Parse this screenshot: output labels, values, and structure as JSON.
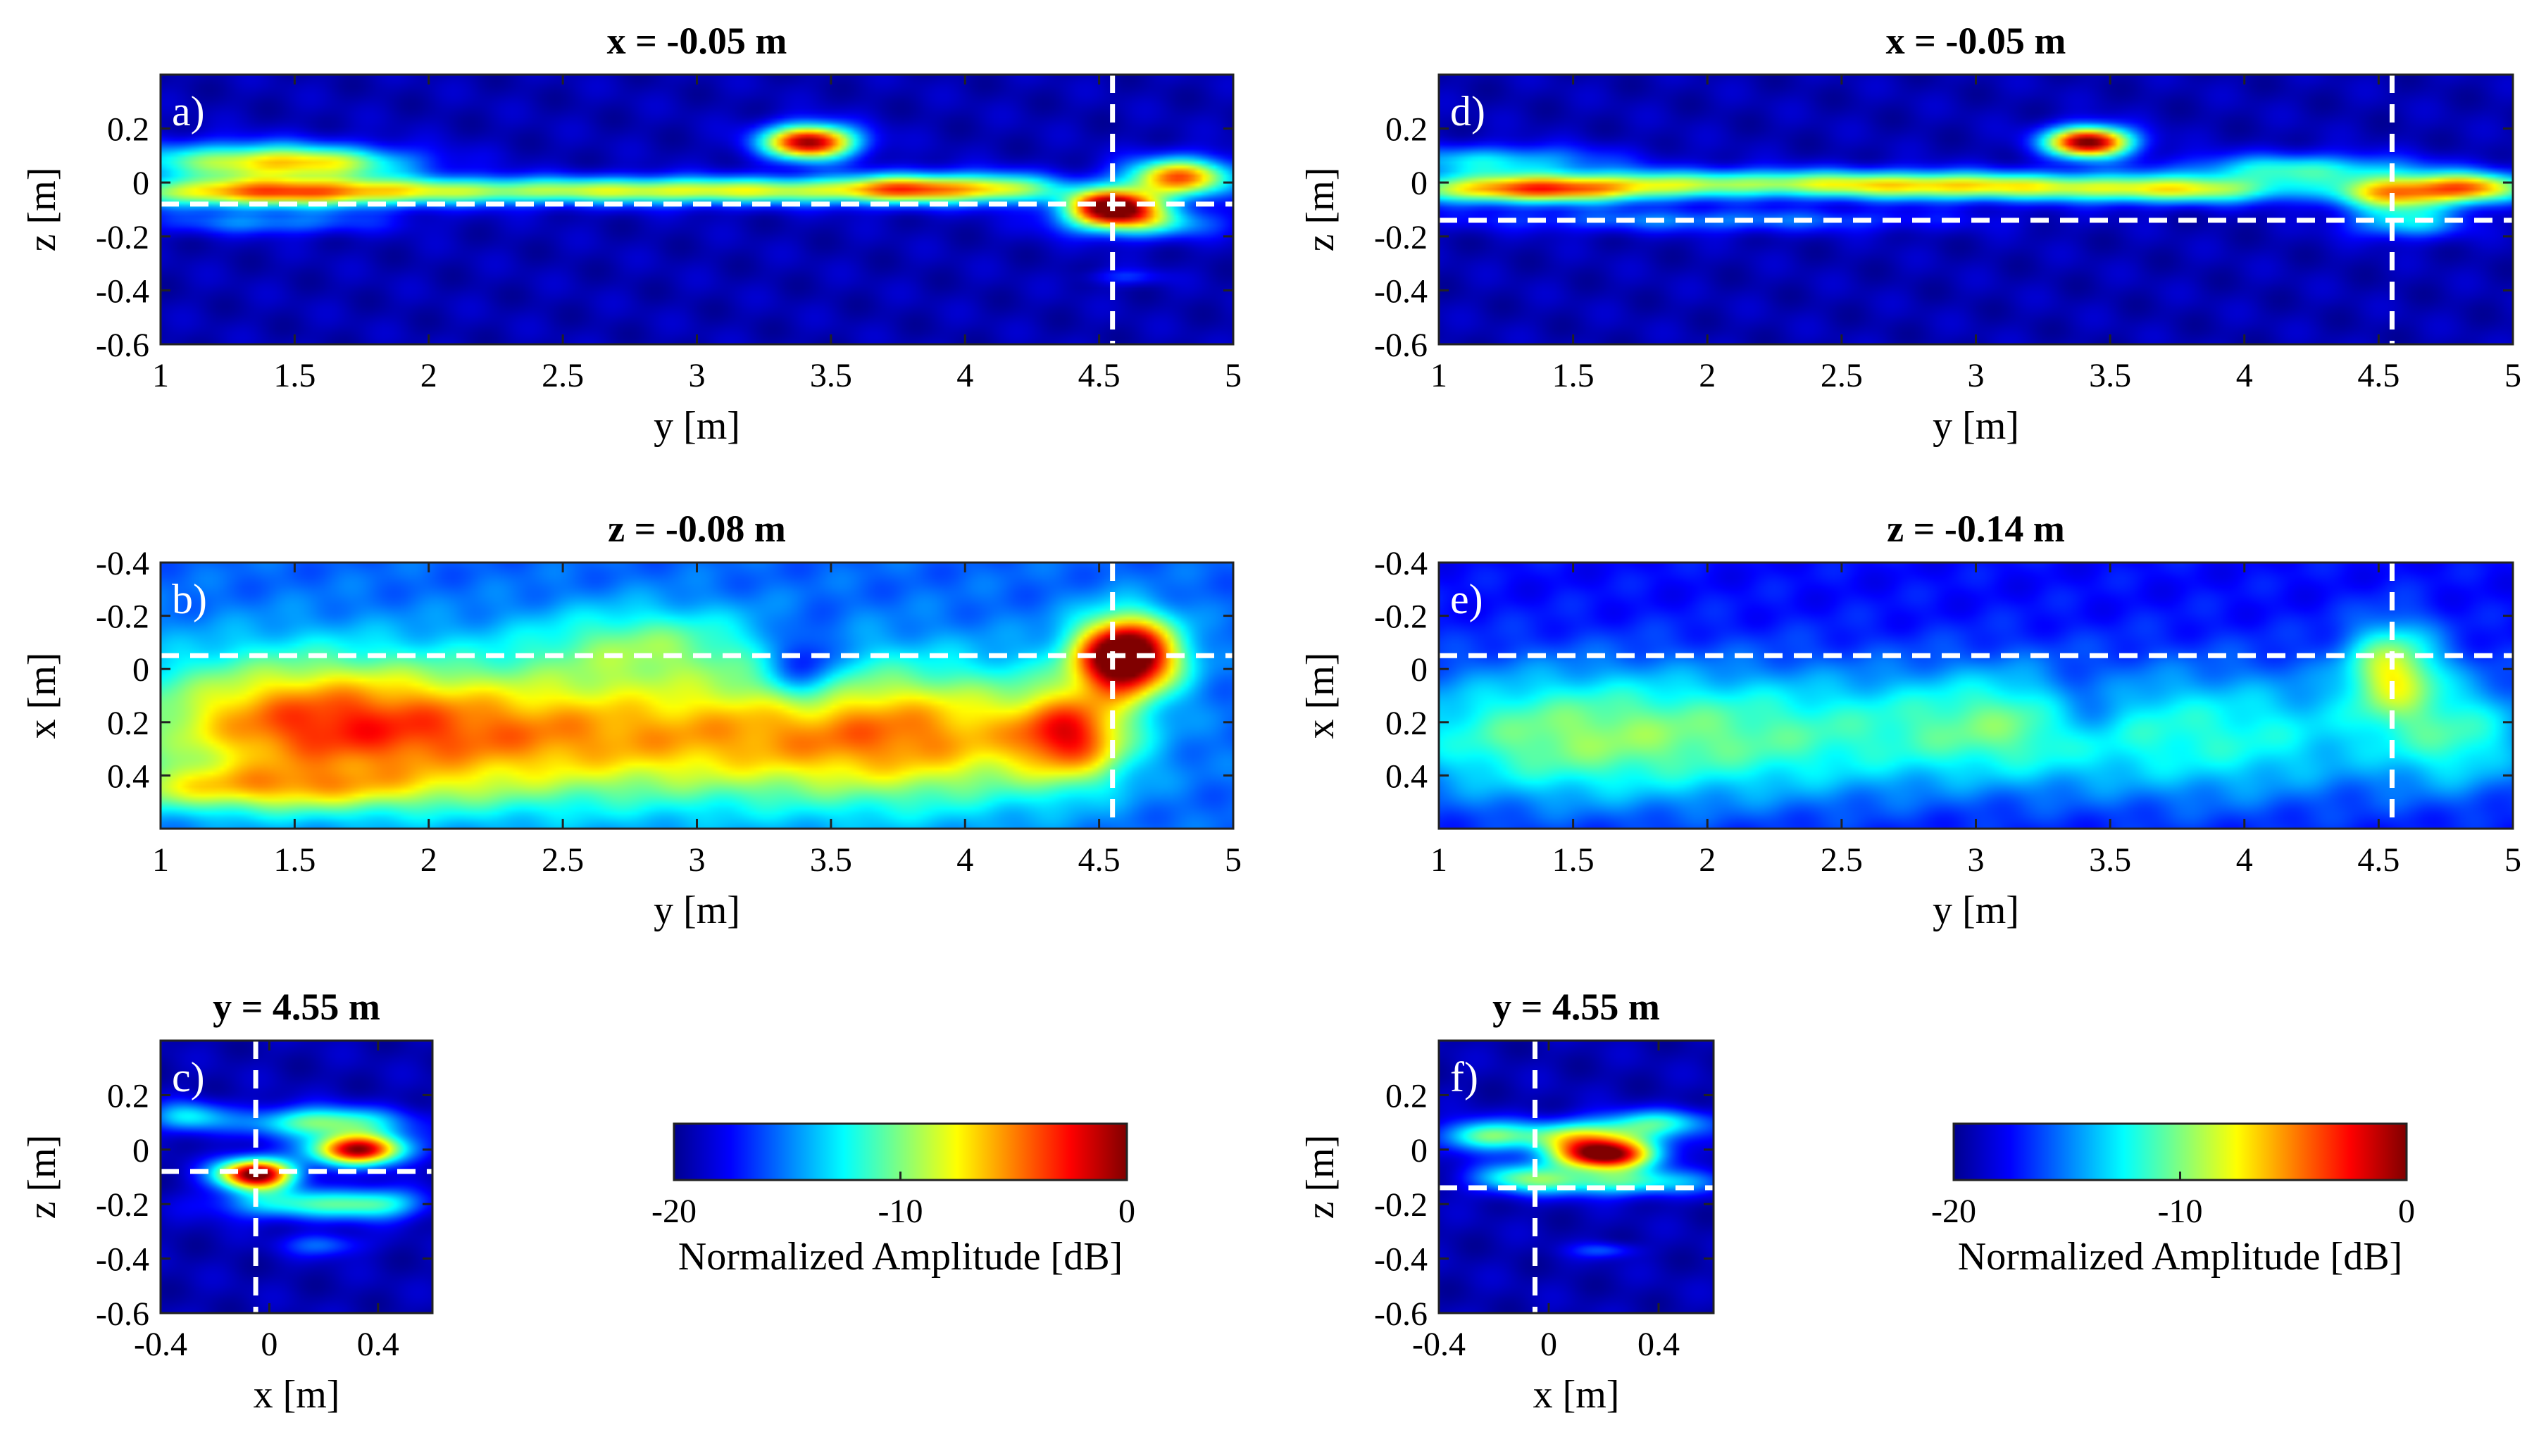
{
  "chart_data": [
    {
      "id": "a",
      "type": "heatmap",
      "panel_label": "a)",
      "title": "x = -0.05 m",
      "xlabel": "y [m]",
      "ylabel": "z [m]",
      "xlim": [
        1,
        5
      ],
      "ylim": [
        -0.6,
        0.4
      ],
      "y_reversed": false,
      "xticks": [
        1,
        1.5,
        2,
        2.5,
        3,
        3.5,
        4,
        4.5,
        5
      ],
      "xtick_labels": [
        "1",
        "1.5",
        "2",
        "2.5",
        "3",
        "3.5",
        "4",
        "4.5",
        "5"
      ],
      "yticks": [
        0.2,
        0,
        -0.2,
        -0.4,
        -0.6
      ],
      "ytick_labels": [
        "0.2",
        "0",
        "-0.2",
        "-0.4",
        "-0.6"
      ],
      "crosshair": {
        "v": 4.55,
        "h": -0.08
      },
      "background_level": 0.05,
      "blobs": [
        {
          "c": [
            1.3,
            0.08
          ],
          "s": [
            0.35,
            0.05
          ],
          "a": 0.42
        },
        {
          "c": [
            1.6,
            0.07
          ],
          "s": [
            0.25,
            0.04
          ],
          "a": 0.3
        },
        {
          "c": [
            1.4,
            -0.04
          ],
          "s": [
            0.4,
            0.04
          ],
          "a": 0.5
        },
        {
          "c": [
            2.3,
            -0.03
          ],
          "s": [
            0.9,
            0.035
          ],
          "a": 0.38
        },
        {
          "c": [
            3.3,
            -0.03
          ],
          "s": [
            0.6,
            0.035
          ],
          "a": 0.32
        },
        {
          "c": [
            3.42,
            0.15
          ],
          "s": [
            0.12,
            0.045
          ],
          "a": 0.95
        },
        {
          "c": [
            3.8,
            -0.02
          ],
          "s": [
            0.18,
            0.04
          ],
          "a": 0.45
        },
        {
          "c": [
            4.15,
            -0.02
          ],
          "s": [
            0.15,
            0.04
          ],
          "a": 0.35
        },
        {
          "c": [
            4.55,
            -0.09
          ],
          "s": [
            0.12,
            0.045
          ],
          "a": 0.98
        },
        {
          "c": [
            4.8,
            0.02
          ],
          "s": [
            0.14,
            0.05
          ],
          "a": 0.72
        },
        {
          "c": [
            4.65,
            -0.15
          ],
          "s": [
            0.2,
            0.04
          ],
          "a": 0.35
        },
        {
          "c": [
            1.4,
            -0.15
          ],
          "s": [
            0.3,
            0.03
          ],
          "a": 0.2
        },
        {
          "c": [
            4.6,
            -0.35
          ],
          "s": [
            0.1,
            0.02
          ],
          "a": 0.12
        }
      ]
    },
    {
      "id": "b",
      "type": "heatmap",
      "panel_label": "b)",
      "title": "z = -0.08 m",
      "xlabel": "y [m]",
      "ylabel": "x [m]",
      "xlim": [
        1,
        5
      ],
      "ylim": [
        -0.4,
        0.6
      ],
      "y_reversed": true,
      "xticks": [
        1,
        1.5,
        2,
        2.5,
        3,
        3.5,
        4,
        4.5,
        5
      ],
      "xtick_labels": [
        "1",
        "1.5",
        "2",
        "2.5",
        "3",
        "3.5",
        "4",
        "4.5",
        "5"
      ],
      "yticks": [
        -0.4,
        -0.2,
        0,
        0.2,
        0.4
      ],
      "ytick_labels": [
        "-0.4",
        "-0.2",
        "0",
        "0.2",
        "0.4"
      ],
      "crosshair": {
        "v": 4.55,
        "h": -0.05
      },
      "background_level": 0.22,
      "blobs": [
        {
          "c": [
            1.5,
            0.2
          ],
          "s": [
            0.45,
            0.18
          ],
          "a": 0.5
        },
        {
          "c": [
            2.3,
            0.25
          ],
          "s": [
            0.5,
            0.18
          ],
          "a": 0.38
        },
        {
          "c": [
            3.2,
            0.25
          ],
          "s": [
            0.5,
            0.18
          ],
          "a": 0.35
        },
        {
          "c": [
            3.9,
            0.25
          ],
          "s": [
            0.4,
            0.18
          ],
          "a": 0.38
        },
        {
          "c": [
            4.6,
            -0.05
          ],
          "s": [
            0.13,
            0.1
          ],
          "a": 1.0
        },
        {
          "c": [
            4.4,
            0.25
          ],
          "s": [
            0.15,
            0.12
          ],
          "a": 0.48
        },
        {
          "c": [
            1.3,
            0.45
          ],
          "s": [
            0.5,
            0.06
          ],
          "a": 0.28
        },
        {
          "c": [
            2.8,
            -0.1
          ],
          "s": [
            0.3,
            0.1
          ],
          "a": 0.22
        },
        {
          "c": [
            3.4,
            0.0
          ],
          "s": [
            0.1,
            0.1
          ],
          "a": -0.25
        }
      ]
    },
    {
      "id": "c",
      "type": "heatmap",
      "panel_label": "c)",
      "title": "y = 4.55 m",
      "xlabel": "x [m]",
      "ylabel": "z [m]",
      "xlim": [
        -0.4,
        0.6
      ],
      "ylim": [
        -0.6,
        0.4
      ],
      "y_reversed": false,
      "xticks": [
        -0.4,
        0,
        0.4
      ],
      "xtick_labels": [
        "-0.4",
        "0",
        "0.4"
      ],
      "yticks": [
        0.2,
        0,
        -0.2,
        -0.4,
        -0.6
      ],
      "ytick_labels": [
        "0.2",
        "0",
        "-0.2",
        "-0.4",
        "-0.6"
      ],
      "crosshair": {
        "v": -0.05,
        "h": -0.08
      },
      "background_level": 0.05,
      "blobs": [
        {
          "c": [
            -0.05,
            -0.09
          ],
          "s": [
            0.1,
            0.04
          ],
          "a": 1.0
        },
        {
          "c": [
            0.33,
            0.0
          ],
          "s": [
            0.12,
            0.04
          ],
          "a": 0.92
        },
        {
          "c": [
            0.2,
            0.1
          ],
          "s": [
            0.2,
            0.04
          ],
          "a": 0.45
        },
        {
          "c": [
            -0.3,
            0.12
          ],
          "s": [
            0.1,
            0.04
          ],
          "a": 0.3
        },
        {
          "c": [
            0.1,
            -0.2
          ],
          "s": [
            0.2,
            0.04
          ],
          "a": 0.35
        },
        {
          "c": [
            0.4,
            -0.2
          ],
          "s": [
            0.12,
            0.04
          ],
          "a": 0.3
        },
        {
          "c": [
            0.2,
            -0.35
          ],
          "s": [
            0.1,
            0.03
          ],
          "a": 0.18
        }
      ]
    },
    {
      "id": "d",
      "type": "heatmap",
      "panel_label": "d)",
      "title": "x = -0.05 m",
      "xlabel": "y [m]",
      "ylabel": "z [m]",
      "xlim": [
        1,
        5
      ],
      "ylim": [
        -0.6,
        0.4
      ],
      "y_reversed": false,
      "xticks": [
        1,
        1.5,
        2,
        2.5,
        3,
        3.5,
        4,
        4.5,
        5
      ],
      "xtick_labels": [
        "1",
        "1.5",
        "2",
        "2.5",
        "3",
        "3.5",
        "4",
        "4.5",
        "5"
      ],
      "yticks": [
        0.2,
        0,
        -0.2,
        -0.4,
        -0.6
      ],
      "ytick_labels": [
        "0.2",
        "0",
        "-0.2",
        "-0.4",
        "-0.6"
      ],
      "crosshair": {
        "v": 4.55,
        "h": -0.14
      },
      "background_level": 0.05,
      "blobs": [
        {
          "c": [
            1.35,
            -0.03
          ],
          "s": [
            0.35,
            0.035
          ],
          "a": 0.62
        },
        {
          "c": [
            1.2,
            0.08
          ],
          "s": [
            0.3,
            0.04
          ],
          "a": 0.3
        },
        {
          "c": [
            2.2,
            0.0
          ],
          "s": [
            0.8,
            0.035
          ],
          "a": 0.38
        },
        {
          "c": [
            3.0,
            -0.02
          ],
          "s": [
            0.5,
            0.035
          ],
          "a": 0.4
        },
        {
          "c": [
            3.42,
            0.15
          ],
          "s": [
            0.11,
            0.04
          ],
          "a": 1.0
        },
        {
          "c": [
            3.8,
            -0.03
          ],
          "s": [
            0.3,
            0.035
          ],
          "a": 0.4
        },
        {
          "c": [
            4.2,
            0.05
          ],
          "s": [
            0.3,
            0.04
          ],
          "a": 0.35
        },
        {
          "c": [
            4.55,
            -0.04
          ],
          "s": [
            0.15,
            0.045
          ],
          "a": 0.6
        },
        {
          "c": [
            4.85,
            -0.02
          ],
          "s": [
            0.15,
            0.04
          ],
          "a": 0.65
        },
        {
          "c": [
            4.6,
            -0.15
          ],
          "s": [
            0.15,
            0.04
          ],
          "a": 0.3
        },
        {
          "c": [
            2.0,
            -0.14
          ],
          "s": [
            0.6,
            0.03
          ],
          "a": 0.2
        }
      ]
    },
    {
      "id": "e",
      "type": "heatmap",
      "panel_label": "e)",
      "title": "z = -0.14 m",
      "xlabel": "y [m]",
      "ylabel": "x [m]",
      "xlim": [
        1,
        5
      ],
      "ylim": [
        -0.4,
        0.6
      ],
      "y_reversed": true,
      "xticks": [
        1,
        1.5,
        2,
        2.5,
        3,
        3.5,
        4,
        4.5,
        5
      ],
      "xtick_labels": [
        "1",
        "1.5",
        "2",
        "2.5",
        "3",
        "3.5",
        "4",
        "4.5",
        "5"
      ],
      "yticks": [
        -0.4,
        -0.2,
        0,
        0.2,
        0.4
      ],
      "ytick_labels": [
        "-0.4",
        "-0.2",
        "0",
        "0.2",
        "0.4"
      ],
      "crosshair": {
        "v": 4.55,
        "h": -0.05
      },
      "background_level": 0.13,
      "blobs": [
        {
          "c": [
            1.4,
            0.25
          ],
          "s": [
            0.45,
            0.18
          ],
          "a": 0.32
        },
        {
          "c": [
            2.3,
            0.25
          ],
          "s": [
            0.5,
            0.18
          ],
          "a": 0.27
        },
        {
          "c": [
            3.1,
            0.2
          ],
          "s": [
            0.3,
            0.15
          ],
          "a": 0.22
        },
        {
          "c": [
            3.9,
            0.25
          ],
          "s": [
            0.5,
            0.18
          ],
          "a": 0.27
        },
        {
          "c": [
            4.55,
            0.0
          ],
          "s": [
            0.12,
            0.12
          ],
          "a": 0.42
        },
        {
          "c": [
            4.8,
            0.25
          ],
          "s": [
            0.2,
            0.15
          ],
          "a": 0.25
        },
        {
          "c": [
            3.4,
            0.15
          ],
          "s": [
            0.12,
            0.1
          ],
          "a": -0.15
        }
      ]
    },
    {
      "id": "f",
      "type": "heatmap",
      "panel_label": "f)",
      "title": "y = 4.55 m",
      "xlabel": "x [m]",
      "ylabel": "z [m]",
      "xlim": [
        -0.4,
        0.6
      ],
      "ylim": [
        -0.6,
        0.4
      ],
      "y_reversed": false,
      "xticks": [
        -0.4,
        0,
        0.4
      ],
      "xtick_labels": [
        "-0.4",
        "0",
        "0.4"
      ],
      "yticks": [
        0.2,
        0,
        -0.2,
        -0.4,
        -0.6
      ],
      "ytick_labels": [
        "0.2",
        "0",
        "-0.2",
        "-0.4",
        "-0.6"
      ],
      "crosshair": {
        "v": -0.05,
        "h": -0.14
      },
      "background_level": 0.05,
      "blobs": [
        {
          "c": [
            0.2,
            -0.02
          ],
          "s": [
            0.13,
            0.04
          ],
          "a": 0.95
        },
        {
          "c": [
            0.1,
            0.05
          ],
          "s": [
            0.2,
            0.04
          ],
          "a": 0.45
        },
        {
          "c": [
            -0.25,
            0.05
          ],
          "s": [
            0.1,
            0.04
          ],
          "a": 0.35
        },
        {
          "c": [
            0.25,
            -0.12
          ],
          "s": [
            0.25,
            0.035
          ],
          "a": 0.38
        },
        {
          "c": [
            -0.1,
            -0.1
          ],
          "s": [
            0.12,
            0.04
          ],
          "a": 0.3
        },
        {
          "c": [
            0.4,
            0.1
          ],
          "s": [
            0.15,
            0.035
          ],
          "a": 0.3
        },
        {
          "c": [
            0.2,
            -0.37
          ],
          "s": [
            0.08,
            0.02
          ],
          "a": 0.15
        }
      ]
    }
  ],
  "colorbars": [
    {
      "id": "cb-left",
      "ticks": [
        -20,
        -10,
        0
      ],
      "tick_labels": [
        "-20",
        "-10",
        "0"
      ],
      "label": "Normalized Amplitude [dB]",
      "range": [
        -20,
        0
      ]
    },
    {
      "id": "cb-right",
      "ticks": [
        -20,
        -10,
        0
      ],
      "tick_labels": [
        "-20",
        "-10",
        "0"
      ],
      "label": "Normalized Amplitude [dB]",
      "range": [
        -20,
        0
      ]
    }
  ],
  "colormap": [
    "#00008f",
    "#0000ff",
    "#0080ff",
    "#00ffff",
    "#80ff80",
    "#ffff00",
    "#ff8000",
    "#ff0000",
    "#800000"
  ]
}
